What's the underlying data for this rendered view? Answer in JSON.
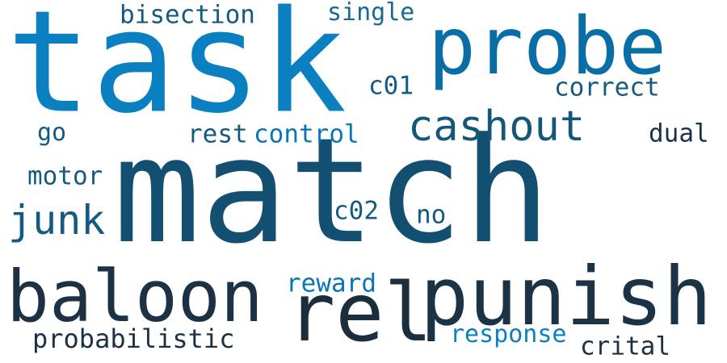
{
  "words": [
    {
      "text": "task",
      "color": "#0a80c0"
    },
    {
      "text": "match",
      "color": "#134f71"
    },
    {
      "text": "probe",
      "color": "#0a6ea6"
    },
    {
      "text": "rel",
      "color": "#1c2e3e"
    },
    {
      "text": "punish",
      "color": "#1c3345"
    },
    {
      "text": "baloon",
      "color": "#1c3144"
    },
    {
      "text": "cashout",
      "color": "#145779"
    },
    {
      "text": "junk",
      "color": "#145a82"
    },
    {
      "text": "bisection",
      "color": "#145a80"
    },
    {
      "text": "single",
      "color": "#1a6994"
    },
    {
      "text": "correct",
      "color": "#145a80"
    },
    {
      "text": "c01",
      "color": "#145a82"
    },
    {
      "text": "go",
      "color": "#145a82"
    },
    {
      "text": "rest",
      "color": "#145a80"
    },
    {
      "text": "control",
      "color": "#0a75b5"
    },
    {
      "text": "dual",
      "color": "#1c3144"
    },
    {
      "text": "motor",
      "color": "#145a82"
    },
    {
      "text": "c02",
      "color": "#145a82"
    },
    {
      "text": "no",
      "color": "#145a80"
    },
    {
      "text": "reward",
      "color": "#0a75b5"
    },
    {
      "text": "probabilistic",
      "color": "#1c3144"
    },
    {
      "text": "response",
      "color": "#0a80c0"
    },
    {
      "text": "crital",
      "color": "#1c3144"
    }
  ]
}
